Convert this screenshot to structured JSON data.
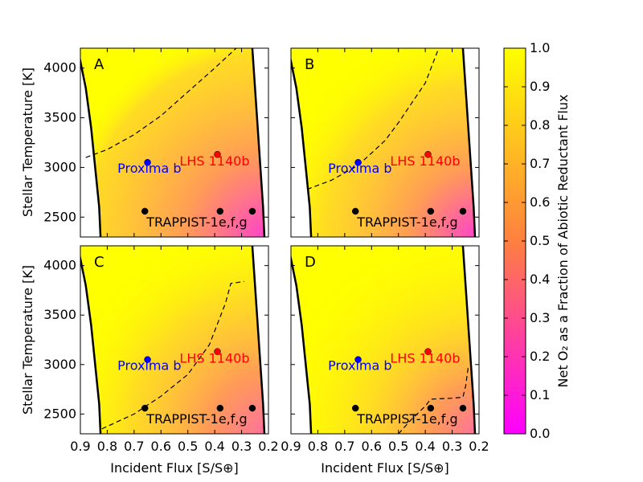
{
  "chart_data": {
    "type": "heatmap",
    "xlabel": "Incident Flux [S/S⊕]",
    "ylabel": "Stellar Temperature [K]",
    "xlim": [
      0.9,
      0.2
    ],
    "ylim": [
      2300,
      4200
    ],
    "x_ticks": [
      "0.9",
      "0.8",
      "0.7",
      "0.6",
      "0.5",
      "0.4",
      "0.3",
      "0.2"
    ],
    "y_ticks": [
      "2500",
      "3000",
      "3500",
      "4000"
    ],
    "colorbar": {
      "label": "Net O₂ as a Fraction of Abiotic Reductant Flux",
      "range": [
        0.0,
        1.0
      ],
      "ticks": [
        "0.0",
        "0.1",
        "0.2",
        "0.3",
        "0.4",
        "0.5",
        "0.6",
        "0.7",
        "0.8",
        "0.9",
        "1.0"
      ],
      "colors": [
        "#ff00ff",
        "#ff8040",
        "#ffff00"
      ]
    },
    "planets": [
      {
        "label": "Proxima b",
        "flux": 0.65,
        "temp": 3050,
        "color": "#0000ff"
      },
      {
        "label": "LHS 1140b",
        "flux": 0.39,
        "temp": 3131,
        "color": "#ff0000"
      },
      {
        "label": "TRAPPIST-1e,f,g",
        "flux": 0.66,
        "temp": 2559,
        "color": "#000000"
      },
      {
        "flux": 0.38,
        "temp": 2559,
        "color": "#000000"
      },
      {
        "flux": 0.26,
        "temp": 2559,
        "color": "#000000"
      }
    ],
    "hz_inner_edge": [
      [
        0.91,
        4200
      ],
      [
        0.88,
        3800
      ],
      [
        0.86,
        3400
      ],
      [
        0.845,
        3000
      ],
      [
        0.83,
        2600
      ],
      [
        0.825,
        2300
      ]
    ],
    "hz_outer_edge": [
      [
        0.26,
        4200
      ],
      [
        0.25,
        3800
      ],
      [
        0.24,
        3400
      ],
      [
        0.23,
        3000
      ],
      [
        0.22,
        2600
      ],
      [
        0.215,
        2300
      ]
    ],
    "panels": [
      {
        "letter": "A",
        "dashed_contour": [
          [
            0.88,
            3100
          ],
          [
            0.8,
            3180
          ],
          [
            0.7,
            3330
          ],
          [
            0.6,
            3520
          ],
          [
            0.5,
            3760
          ],
          [
            0.4,
            4000
          ],
          [
            0.32,
            4200
          ]
        ],
        "magenta_strength": 0.8
      },
      {
        "letter": "B",
        "dashed_contour": [
          [
            0.84,
            2780
          ],
          [
            0.75,
            2870
          ],
          [
            0.65,
            3020
          ],
          [
            0.55,
            3270
          ],
          [
            0.5,
            3450
          ],
          [
            0.4,
            3850
          ],
          [
            0.35,
            4200
          ]
        ],
        "magenta_strength": 0.62
      },
      {
        "letter": "C",
        "dashed_contour": [
          [
            0.82,
            2350
          ],
          [
            0.7,
            2500
          ],
          [
            0.6,
            2680
          ],
          [
            0.5,
            2900
          ],
          [
            0.42,
            3200
          ],
          [
            0.38,
            3480
          ],
          [
            0.36,
            3620
          ],
          [
            0.34,
            3820
          ],
          [
            0.29,
            3840
          ]
        ],
        "magenta_strength": 0.52
      },
      {
        "letter": "D",
        "dashed_contour": [
          [
            0.5,
            2300
          ],
          [
            0.45,
            2450
          ],
          [
            0.4,
            2580
          ],
          [
            0.38,
            2650
          ],
          [
            0.3,
            2660
          ],
          [
            0.26,
            2670
          ],
          [
            0.25,
            2780
          ],
          [
            0.24,
            2980
          ]
        ],
        "magenta_strength": 0.35
      }
    ]
  }
}
